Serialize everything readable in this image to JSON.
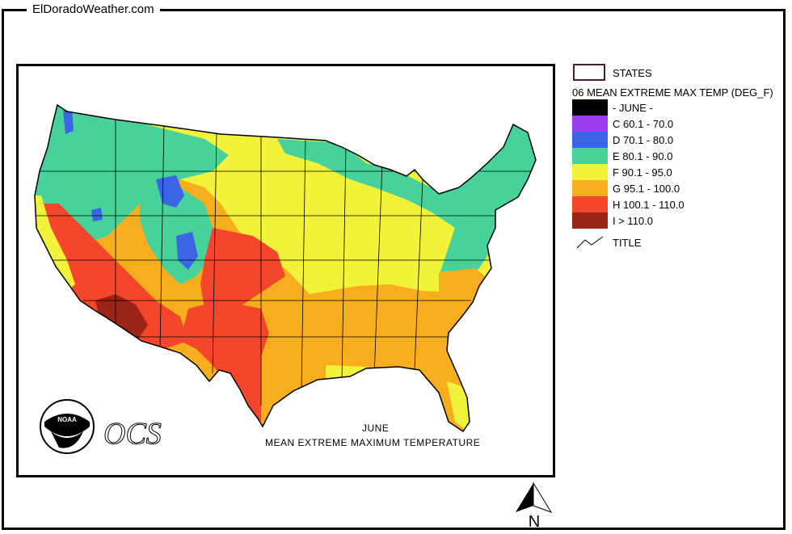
{
  "site": {
    "title": "ElDoradoWeather.com"
  },
  "legend": {
    "states_label": "STATES",
    "heading": "06 MEAN EXTREME MAX TEMP (DEG_F)",
    "classes": [
      {
        "label": "- JUNE -",
        "color": "#000000"
      },
      {
        "label": "C 60.1 - 70.0",
        "color": "#9b3ef0"
      },
      {
        "label": "D 70.1 - 80.0",
        "color": "#3c64e6"
      },
      {
        "label": "E 80.1 - 90.0",
        "color": "#46d29a"
      },
      {
        "label": "F 90.1 - 95.0",
        "color": "#f2f23a"
      },
      {
        "label": "G 95.1 - 100.0",
        "color": "#f7ae1e"
      },
      {
        "label": "H 100.1 - 110.0",
        "color": "#f4462a"
      },
      {
        "label": "I > 110.0",
        "color": "#9a2416"
      }
    ],
    "title_label": "TITLE"
  },
  "map": {
    "caption_line1": "JUNE",
    "caption_line2": "MEAN EXTREME MAXIMUM TEMPERATURE",
    "logo_text": "NOAA",
    "ocs_text": "OCS"
  },
  "north_arrow": {
    "label": "N"
  }
}
